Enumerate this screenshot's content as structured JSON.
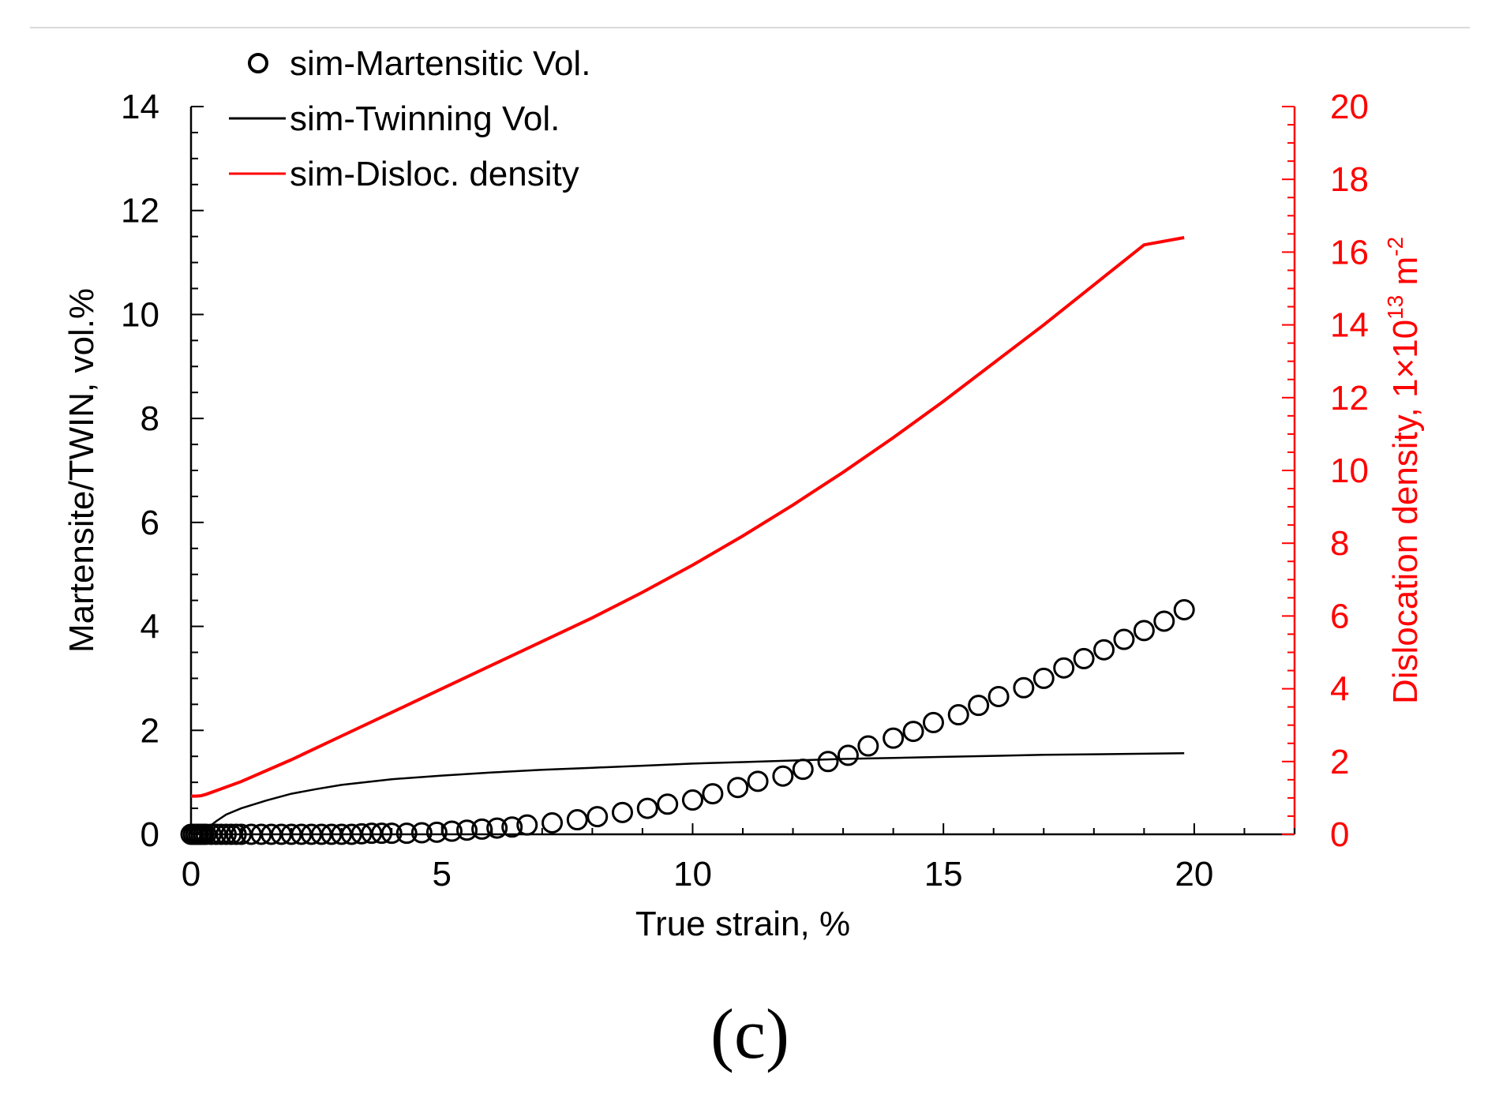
{
  "chart_data": {
    "type": "line",
    "caption": "(c)",
    "xlabel": "True strain, %",
    "ylabel_left": "Martensite/TWIN, vol.%",
    "ylabel_right": {
      "main": "Dislocation density, 1×10",
      "superscript": "13",
      "unit": " m",
      "unit_superscript": "-2"
    },
    "xlim": [
      0,
      22
    ],
    "ylim_left": [
      0,
      14
    ],
    "ylim_right": [
      0,
      20
    ],
    "x_ticks": [
      "0",
      "5",
      "10",
      "15",
      "20"
    ],
    "y_left_ticks": [
      "0",
      "2",
      "4",
      "6",
      "8",
      "10",
      "12",
      "14"
    ],
    "y_right_ticks": [
      "0",
      "2",
      "4",
      "6",
      "8",
      "10",
      "12",
      "14",
      "16",
      "18",
      "20"
    ],
    "colors": {
      "axis": "#000000",
      "right_axis": "#ff0000",
      "twin": "#000000",
      "disloc": "#ff0000",
      "martensite": "#000000"
    },
    "legend": {
      "position": "top-left",
      "entries": [
        "sim-Martensitic Vol.",
        "sim-Twinning Vol.",
        "sim-Disloc. density"
      ]
    },
    "series": [
      {
        "name": "sim-Martensitic Vol.",
        "axis": "left",
        "marker": "circle",
        "x": [
          0,
          0.05,
          0.1,
          0.15,
          0.2,
          0.25,
          0.3,
          0.4,
          0.5,
          0.6,
          0.7,
          0.8,
          0.9,
          1.0,
          1.2,
          1.4,
          1.6,
          1.8,
          2.0,
          2.2,
          2.4,
          2.6,
          2.8,
          3.0,
          3.2,
          3.4,
          3.6,
          3.8,
          4.0,
          4.3,
          4.6,
          4.9,
          5.2,
          5.5,
          5.8,
          6.1,
          6.4,
          6.7,
          7.2,
          7.7,
          8.1,
          8.6,
          9.1,
          9.5,
          10.0,
          10.4,
          10.9,
          11.3,
          11.8,
          12.2,
          12.7,
          13.1,
          13.5,
          14.0,
          14.4,
          14.8,
          15.3,
          15.7,
          16.1,
          16.6,
          17.0,
          17.4,
          17.8,
          18.2,
          18.6,
          19.0,
          19.4,
          19.8
        ],
        "y": [
          0,
          0,
          0,
          0,
          0,
          0,
          0,
          0,
          0,
          0,
          0,
          0,
          0,
          0,
          0,
          0,
          0,
          0,
          0,
          0,
          0,
          0,
          0,
          0,
          0,
          0.01,
          0.02,
          0.02,
          0.02,
          0.02,
          0.03,
          0.04,
          0.06,
          0.08,
          0.1,
          0.12,
          0.14,
          0.18,
          0.22,
          0.28,
          0.34,
          0.42,
          0.5,
          0.58,
          0.66,
          0.78,
          0.9,
          1.02,
          1.12,
          1.25,
          1.4,
          1.52,
          1.7,
          1.85,
          1.98,
          2.15,
          2.3,
          2.48,
          2.65,
          2.82,
          3.0,
          3.2,
          3.38,
          3.55,
          3.75,
          3.92,
          4.1,
          4.32
        ]
      },
      {
        "name": "sim-Twinning Vol.",
        "axis": "left",
        "marker": "line",
        "x": [
          0,
          0.1,
          0.2,
          0.3,
          0.5,
          0.7,
          1.0,
          1.5,
          2.0,
          2.5,
          3.0,
          4.0,
          5.0,
          6.0,
          7.0,
          8.0,
          9.0,
          10.0,
          11.0,
          12.0,
          13.0,
          14.0,
          15.0,
          16.0,
          17.0,
          18.0,
          19.0,
          19.8
        ],
        "y": [
          0,
          0.02,
          0.05,
          0.1,
          0.25,
          0.38,
          0.5,
          0.65,
          0.78,
          0.87,
          0.95,
          1.06,
          1.13,
          1.19,
          1.24,
          1.28,
          1.32,
          1.36,
          1.39,
          1.42,
          1.45,
          1.47,
          1.49,
          1.51,
          1.53,
          1.54,
          1.55,
          1.56
        ]
      },
      {
        "name": "sim-Disloc. density",
        "axis": "right",
        "marker": "line",
        "x": [
          0,
          0.1,
          0.2,
          0.3,
          0.5,
          1,
          2,
          3,
          4,
          5,
          6,
          7,
          8,
          9,
          10,
          11,
          12,
          13,
          14,
          15,
          16,
          17,
          18,
          19,
          19.8
        ],
        "y": [
          1.05,
          1.05,
          1.06,
          1.1,
          1.2,
          1.45,
          2.05,
          2.7,
          3.35,
          4.0,
          4.65,
          5.3,
          5.95,
          6.65,
          7.4,
          8.2,
          9.05,
          9.95,
          10.9,
          11.9,
          12.95,
          14.0,
          15.1,
          16.2,
          16.4
        ]
      }
    ]
  }
}
